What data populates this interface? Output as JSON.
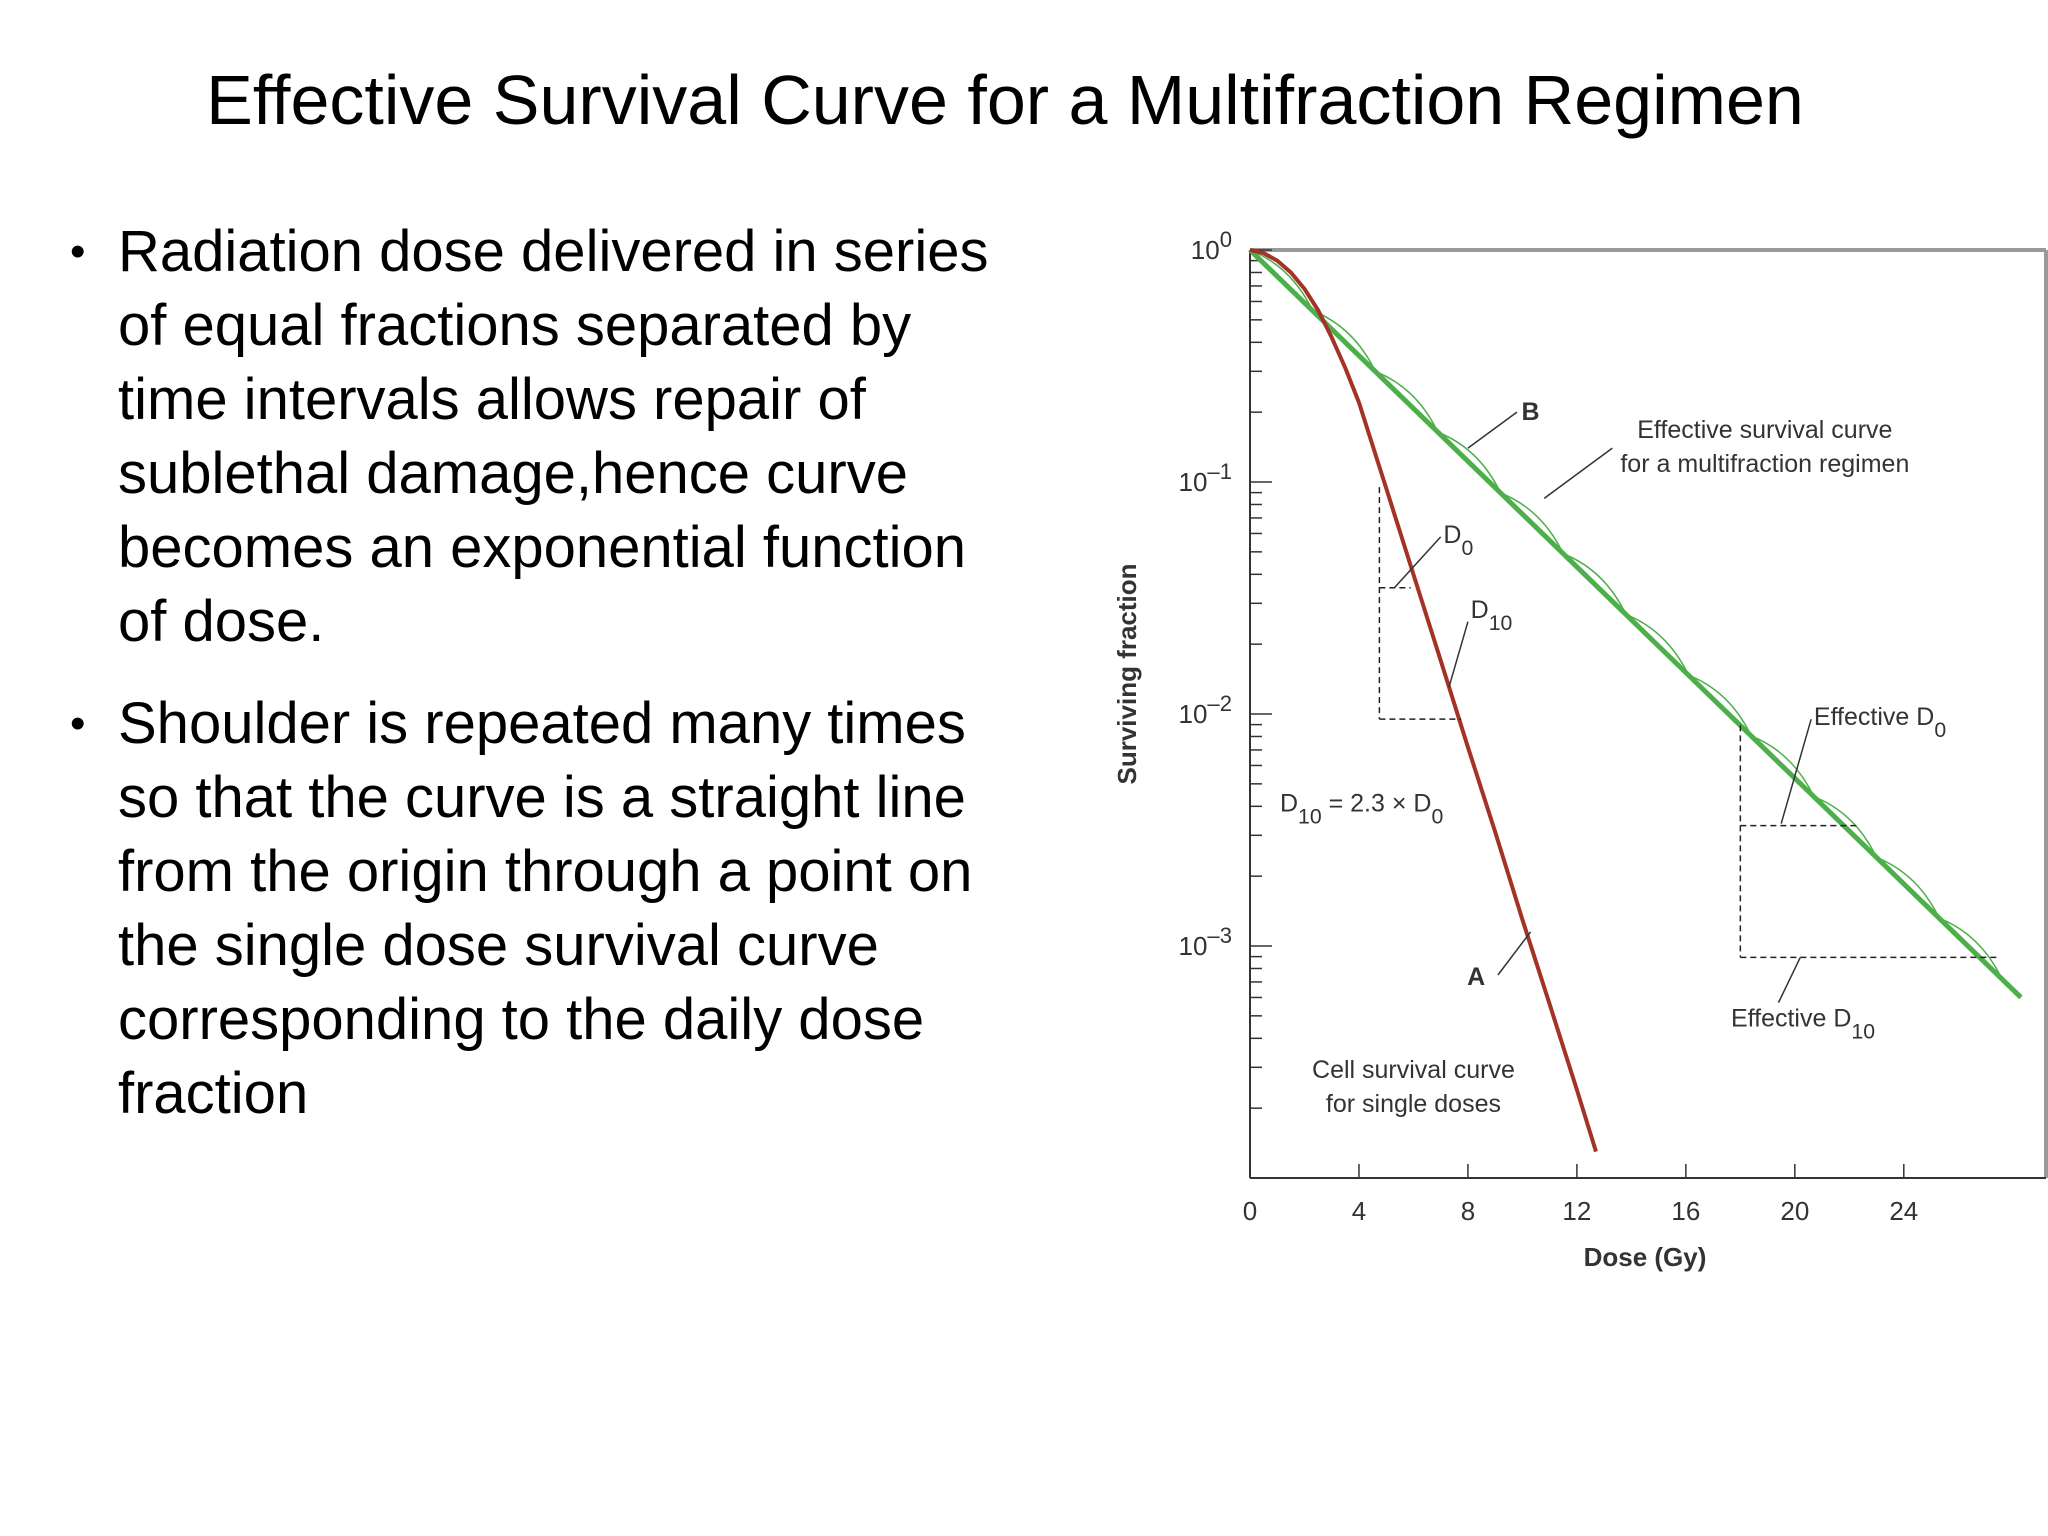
{
  "slide": {
    "title": "Effective Survival Curve for a Multifraction Regimen",
    "bullets": [
      "Radiation dose delivered in series of equal fractions separated by time intervals allows repair of sublethal damage,hence curve becomes an exponential function of dose.",
      "Shoulder is repeated many times so that the curve is a straight line from the origin through a point on the single dose survival curve corresponding to the daily dose fraction"
    ]
  },
  "chart_data": {
    "type": "line",
    "xlabel": "Dose (Gy)",
    "ylabel": "Surviving fraction",
    "y_scale": "log",
    "xlim": [
      0,
      29
    ],
    "ylim": [
      0.0001,
      1
    ],
    "x_ticks": [
      "0",
      "4",
      "8",
      "12",
      "16",
      "20",
      "24"
    ],
    "x_tick_values": [
      0,
      4,
      8,
      12,
      16,
      20,
      24
    ],
    "y_tick_labels": [
      {
        "base": "10",
        "exp": "0",
        "value": 1
      },
      {
        "base": "10",
        "exp": "–1",
        "value": 0.1
      },
      {
        "base": "10",
        "exp": "–2",
        "value": 0.01
      },
      {
        "base": "10",
        "exp": "–3",
        "value": 0.001
      }
    ],
    "series": [
      {
        "name": "A",
        "color": "#a33327",
        "x": [
          0,
          0.5,
          1,
          1.5,
          2,
          2.5,
          3,
          3.5,
          4,
          5,
          6,
          7,
          8,
          9,
          10,
          11,
          12,
          12.7
        ],
        "y": [
          1,
          0.97,
          0.9,
          0.8,
          0.68,
          0.55,
          0.42,
          0.31,
          0.22,
          0.094,
          0.04,
          0.017,
          0.0072,
          0.0031,
          0.0013,
          0.00056,
          0.00024,
          0.00013
        ]
      },
      {
        "name": "B",
        "color": "#4daf4a",
        "x": [
          0,
          28.3
        ],
        "y": [
          1,
          0.0006
        ]
      }
    ],
    "fraction_dose": 2.3,
    "annotations": {
      "A": "A",
      "B": "B",
      "effective_curve_line1": "Effective survival curve",
      "effective_curve_line2": "for a multifraction regimen",
      "d0_label": "D",
      "d0_sub": "0",
      "d10_label": "D",
      "d10_sub": "10",
      "relation_part1": "D",
      "relation_sub1": "10",
      "relation_part2": " = 2.3 × D",
      "relation_sub2": "0",
      "eff_d0_label": "Effective D",
      "eff_d0_sub": "0",
      "eff_d10_label": "Effective D",
      "eff_d10_sub": "10",
      "single_dose_line1": "Cell survival curve",
      "single_dose_line2": "for single doses"
    },
    "colors": {
      "single_dose_curve": "#a33327",
      "effective_curve": "#4daf4a",
      "effective_scallops": "#4daf4a"
    }
  }
}
